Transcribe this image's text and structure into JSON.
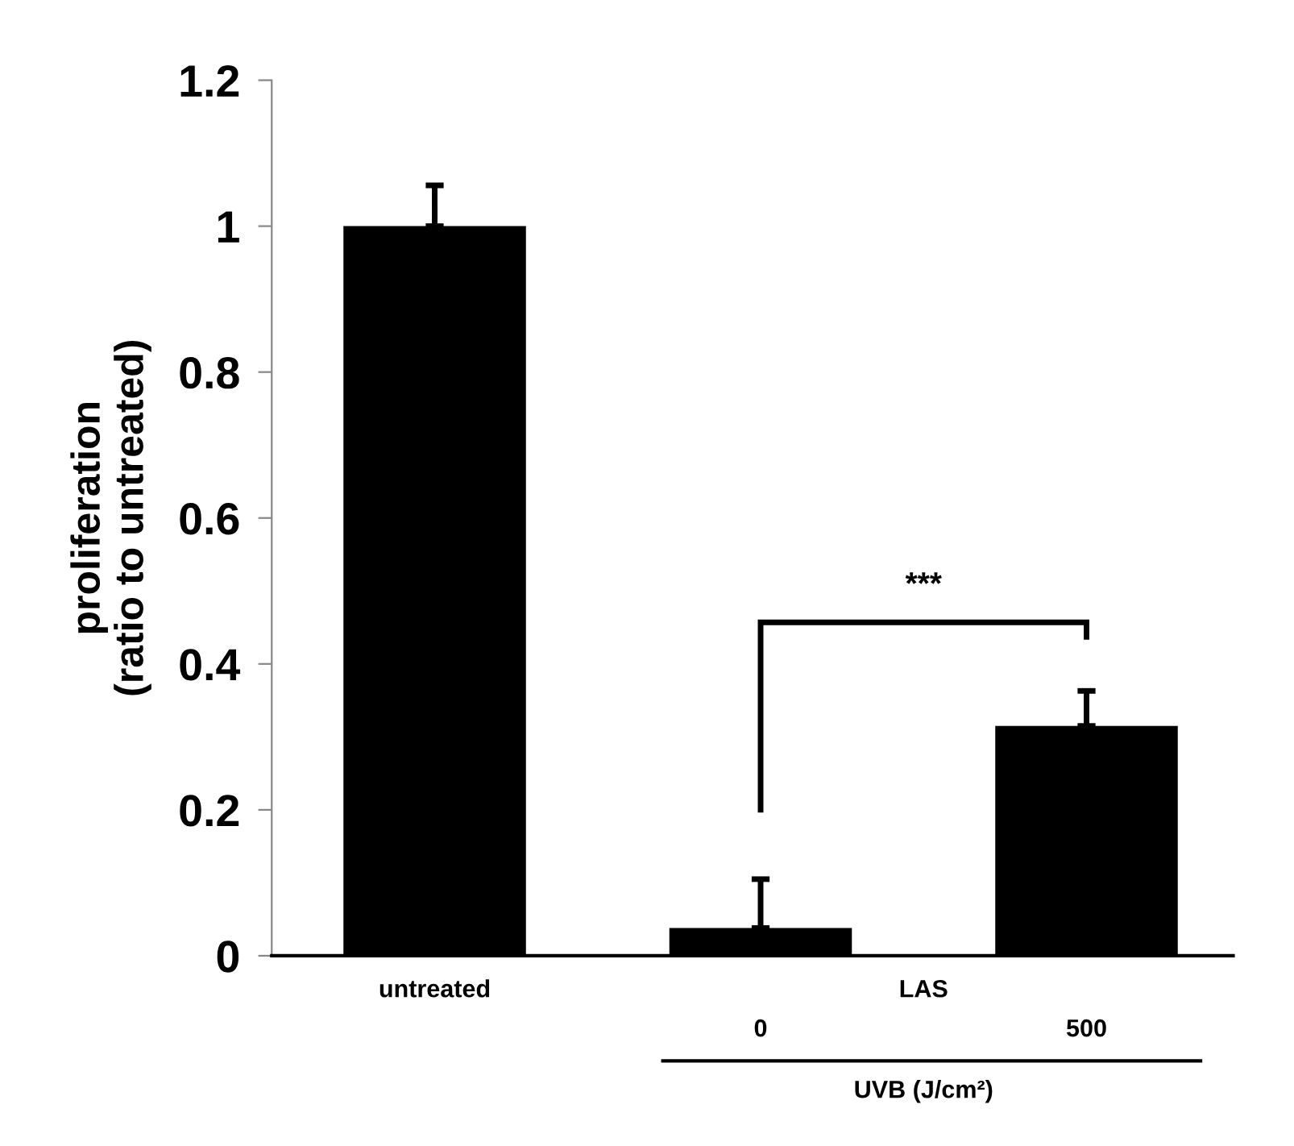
{
  "chart_data": {
    "type": "bar",
    "ylabel": "proliferation\n(ratio to untreated)",
    "categories": [
      "untreated",
      "0",
      "500"
    ],
    "values": [
      1.0,
      0.038,
      0.315
    ],
    "errors": [
      [
        1.0,
        1.056
      ],
      [
        0.038,
        0.105
      ],
      [
        0.315,
        0.363
      ]
    ],
    "color": "#000000",
    "ylim": [
      0,
      1.2
    ],
    "yticks": [
      0,
      0.2,
      0.4,
      0.6,
      0.8,
      1,
      1.2
    ],
    "grid": false,
    "annotations": [
      "***",
      "LAS",
      "UVB (J/cm²)"
    ]
  }
}
